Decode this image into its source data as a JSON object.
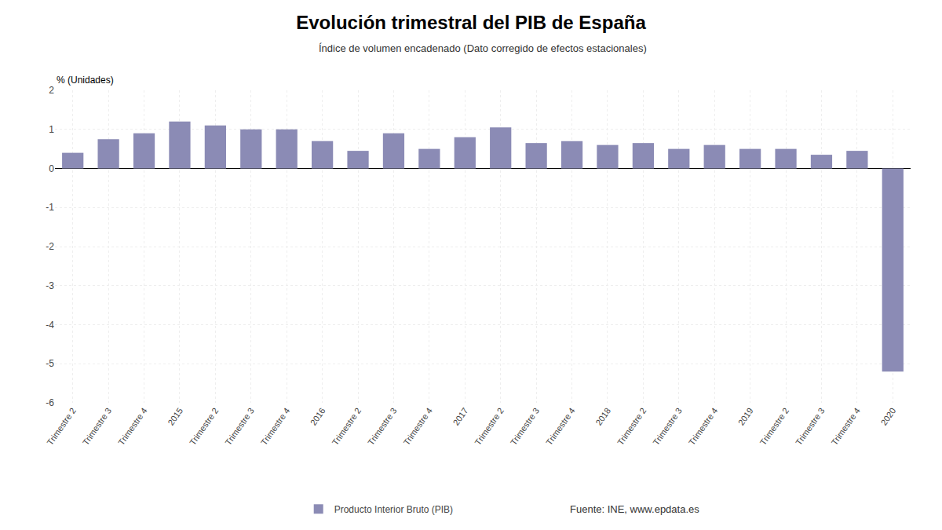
{
  "chart_data": {
    "type": "bar",
    "title": "Evolución trimestral del PIB de España",
    "subtitle": "Índice de volumen encadenado (Dato corregido de efectos estacionales)",
    "ylabel": "% (Unidades)",
    "annotations": [
      "Fuente: INE, www.epdata.es"
    ],
    "categories": [
      "Trimestre 2",
      "Trimestre 3",
      "Trimestre 4",
      "2015",
      "Trimestre 2",
      "Trimestre 3",
      "Trimestre 4",
      "2016",
      "Trimestre 2",
      "Trimestre 3",
      "Trimestre 4",
      "2017",
      "Trimestre 2",
      "Trimestre 3",
      "Trimestre 4",
      "2018",
      "Trimestre 2",
      "Trimestre 3",
      "Trimestre 4",
      "2019",
      "Trimestre 2",
      "Trimestre 3",
      "Trimestre 4",
      "2020"
    ],
    "series": [
      {
        "name": "Producto Interior Bruto (PIB)",
        "color": "#8b8bb5",
        "values": [
          0.4,
          0.75,
          0.9,
          1.2,
          1.1,
          1.0,
          1.0,
          0.7,
          0.45,
          0.9,
          0.5,
          0.8,
          1.05,
          0.65,
          0.7,
          0.6,
          0.65,
          0.5,
          0.6,
          0.5,
          0.5,
          0.35,
          0.45,
          -5.2
        ]
      }
    ],
    "ylim": [
      -6,
      2
    ],
    "yticks": [
      -6,
      -5,
      -4,
      -3,
      -2,
      -1,
      0,
      1,
      2
    ],
    "grid": true,
    "legend": "bottom"
  }
}
